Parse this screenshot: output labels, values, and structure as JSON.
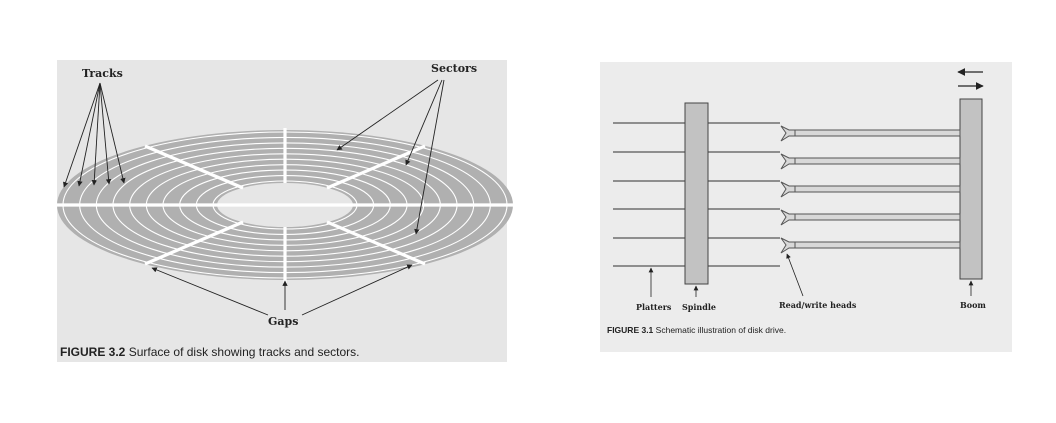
{
  "left_figure": {
    "labels": {
      "tracks": "Tracks",
      "sectors": "Sectors",
      "gaps": "Gaps"
    },
    "caption": {
      "number": "FIGURE 3.2",
      "text": "Surface of disk showing tracks and sectors."
    }
  },
  "right_figure": {
    "labels": {
      "platters": "Platters",
      "spindle": "Spindle",
      "heads": "Read/write heads",
      "boom": "Boom"
    },
    "caption": {
      "number": "FIGURE 3.1",
      "text": "Schematic illustration of disk drive."
    }
  },
  "colors": {
    "disk_fill": "#b0b0b0",
    "track_line": "#ffffff",
    "panel_bg": "#e6e6e6",
    "ink": "#222222"
  }
}
